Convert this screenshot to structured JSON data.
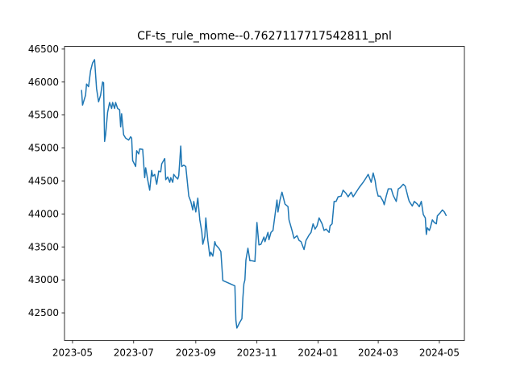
{
  "chart_data": {
    "type": "line",
    "title": "CF-ts_rule_mome--0.7627117717542811_pnl",
    "x": [
      19487,
      19488,
      19491,
      19492,
      19494,
      19496,
      19498,
      19500,
      19502,
      19504,
      19506,
      19508,
      19509,
      19510,
      19511,
      19513,
      19515,
      19517,
      19518,
      19520,
      19521,
      19523,
      19525,
      19526,
      19527,
      19529,
      19531,
      19534,
      19536,
      19537,
      19538,
      19541,
      19542,
      19544,
      19545,
      19548,
      19550,
      19551,
      19553,
      19555,
      19557,
      19558,
      19560,
      19562,
      19564,
      19566,
      19567,
      19570,
      19571,
      19573,
      19575,
      19576,
      19578,
      19579,
      19581,
      19583,
      19584,
      19586,
      19587,
      19589,
      19591,
      19594,
      19596,
      19598,
      19599,
      19601,
      19603,
      19605,
      19607,
      19608,
      19610,
      19611,
      19613,
      19615,
      19616,
      19618,
      19620,
      19621,
      19624,
      19626,
      19628,
      19640,
      19641,
      19642,
      19645,
      19647,
      19648,
      19649,
      19650,
      19651,
      19653,
      19655,
      19657,
      19660,
      19662,
      19664,
      19666,
      19669,
      19670,
      19673,
      19674,
      19676,
      19678,
      19682,
      19683,
      19685,
      19687,
      19690,
      19693,
      19694,
      19697,
      19699,
      19702,
      19704,
      19706,
      19709,
      19711,
      19714,
      19716,
      19718,
      19720,
      19722,
      19724,
      19727,
      19729,
      19731,
      19734,
      19735,
      19737,
      19739,
      19741,
      19743,
      19746,
      19748,
      19751,
      19753,
      19756,
      19758,
      19761,
      19764,
      19768,
      19771,
      19773,
      19776,
      19778,
      19780,
      19781,
      19783,
      19785,
      19788,
      19789,
      19791,
      19793,
      19796,
      19798,
      19801,
      19803,
      19805,
      19808,
      19810,
      19813,
      19814,
      19817,
      19819,
      19822,
      19824,
      19826,
      19828,
      19830,
      19831,
      19832,
      19834,
      19835,
      19837,
      19839,
      19841,
      19842,
      19845,
      19847,
      19849,
      19851
    ],
    "series": [
      {
        "color": "#1f77b4",
        "values": [
          45880,
          45650,
          45800,
          45970,
          45930,
          46170,
          46290,
          46340,
          45900,
          45700,
          45800,
          46000,
          45990,
          45100,
          45200,
          45540,
          45690,
          45600,
          45690,
          45600,
          45690,
          45600,
          45580,
          45320,
          45520,
          45200,
          45150,
          45120,
          45170,
          45150,
          44810,
          44720,
          44960,
          44910,
          44985,
          44980,
          44550,
          44700,
          44520,
          44360,
          44660,
          44570,
          44600,
          44450,
          44650,
          44640,
          44760,
          44840,
          44520,
          44560,
          44480,
          44550,
          44480,
          44600,
          44560,
          44530,
          44580,
          45030,
          44720,
          44740,
          44720,
          44270,
          44190,
          44060,
          44190,
          44030,
          44240,
          43910,
          43730,
          43540,
          43660,
          43940,
          43600,
          43360,
          43420,
          43360,
          43580,
          43530,
          43480,
          43430,
          42990,
          42910,
          42390,
          42270,
          42360,
          42410,
          42730,
          42940,
          43000,
          43300,
          43480,
          43290,
          43290,
          43280,
          43870,
          43530,
          43540,
          43650,
          43580,
          43720,
          43610,
          43720,
          43750,
          44210,
          44030,
          44210,
          44330,
          44150,
          44110,
          43910,
          43750,
          43630,
          43670,
          43600,
          43580,
          43460,
          43600,
          43680,
          43720,
          43850,
          43770,
          43820,
          43940,
          43850,
          43750,
          43770,
          43720,
          43820,
          43850,
          44190,
          44190,
          44260,
          44270,
          44360,
          44310,
          44260,
          44330,
          44260,
          44330,
          44400,
          44480,
          44550,
          44600,
          44480,
          44620,
          44500,
          44390,
          44270,
          44270,
          44190,
          44140,
          44270,
          44380,
          44380,
          44280,
          44190,
          44380,
          44400,
          44450,
          44420,
          44240,
          44190,
          44120,
          44190,
          44150,
          44110,
          44190,
          43990,
          43940,
          43690,
          43790,
          43750,
          43790,
          43910,
          43870,
          43850,
          43970,
          44020,
          44060,
          44030,
          43970
        ]
      }
    ],
    "xlim": [
      19470,
      19869
    ],
    "xticks": [
      {
        "value": 19478,
        "label": "2023-05"
      },
      {
        "value": 19539,
        "label": "2023-07"
      },
      {
        "value": 19601,
        "label": "2023-09"
      },
      {
        "value": 19662,
        "label": "2023-11"
      },
      {
        "value": 19723,
        "label": "2024-01"
      },
      {
        "value": 19783,
        "label": "2024-03"
      },
      {
        "value": 19844,
        "label": "2024-05"
      }
    ],
    "ylim": [
      42080,
      46540
    ],
    "yticks": [
      42500,
      43000,
      43500,
      44000,
      44500,
      45000,
      45500,
      46000,
      46500
    ]
  }
}
